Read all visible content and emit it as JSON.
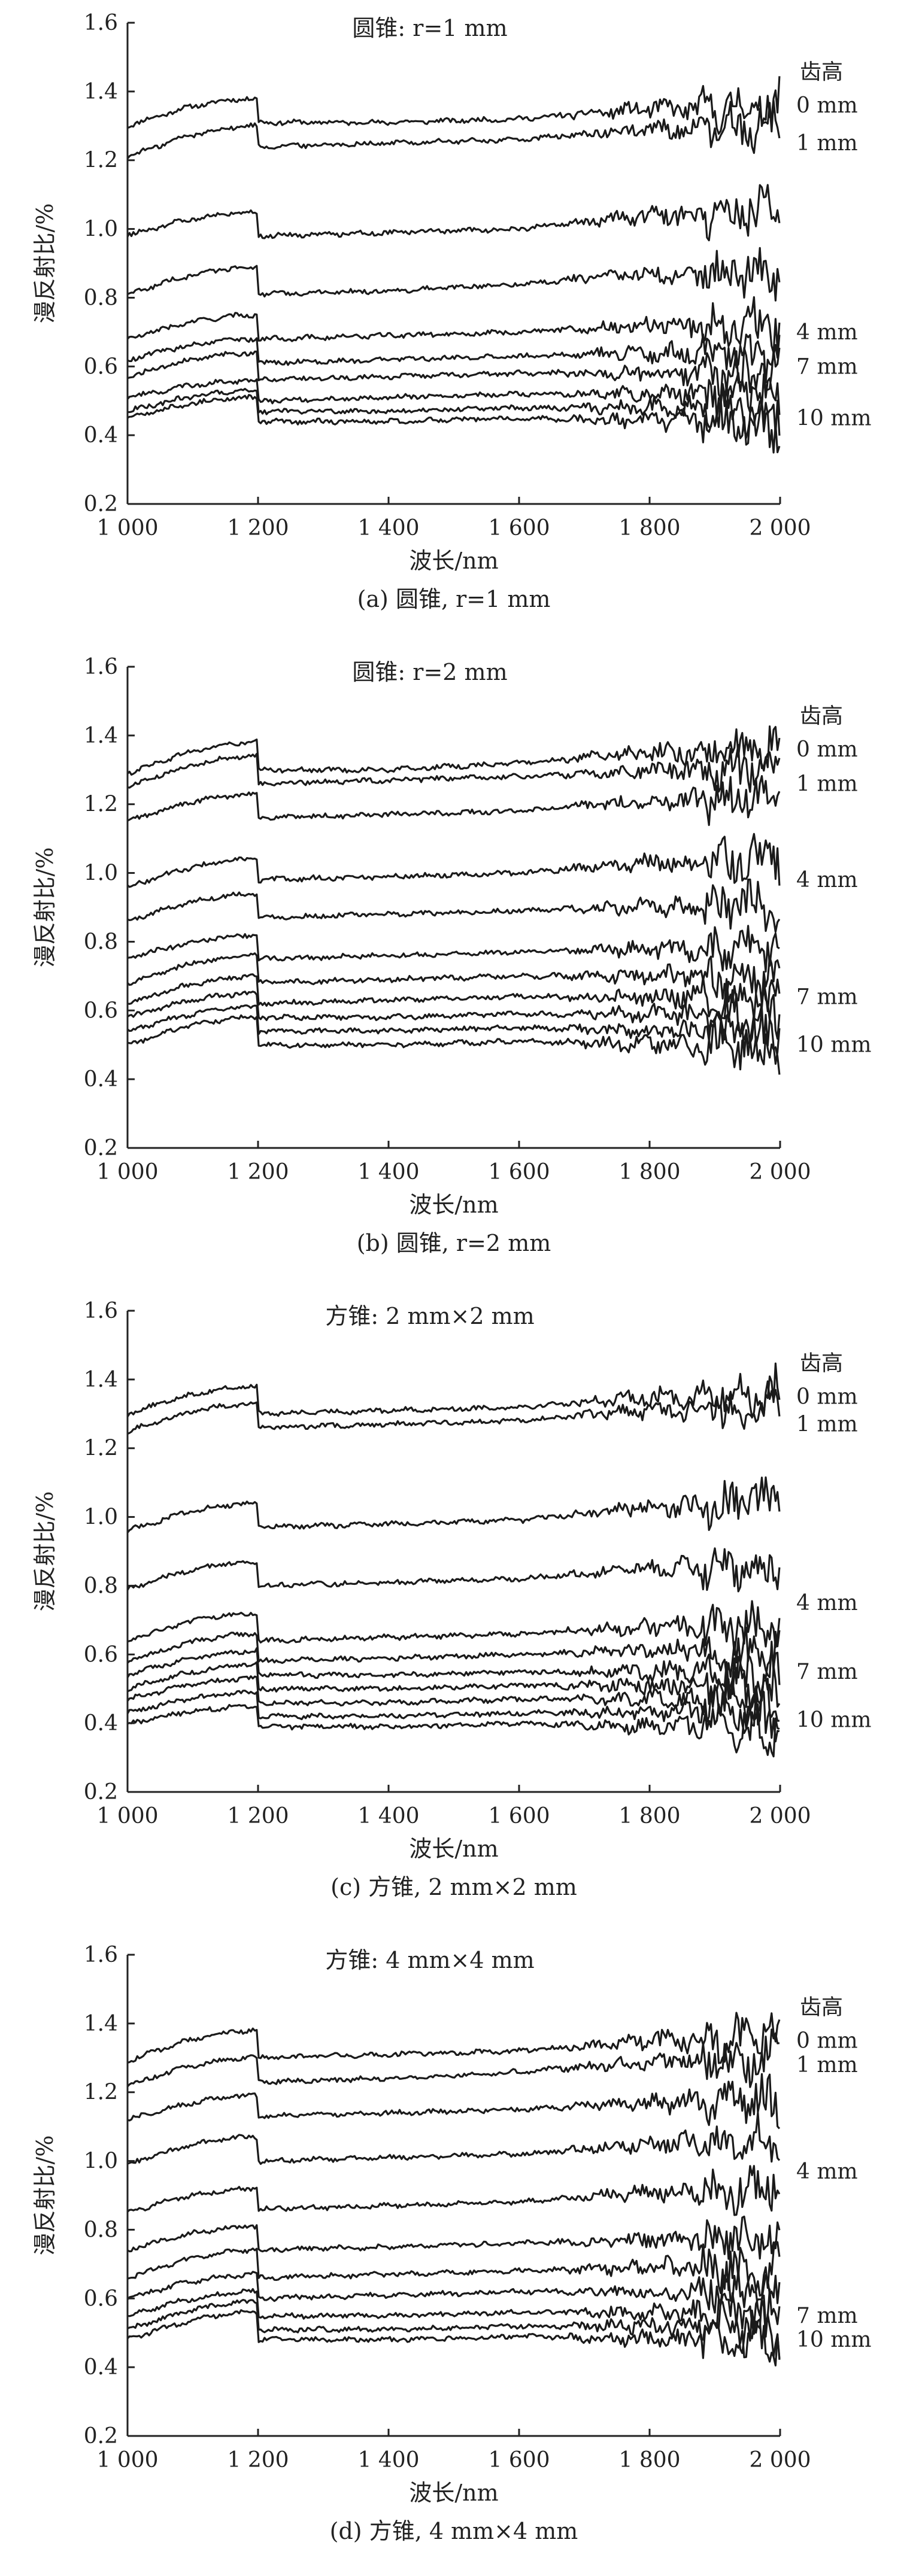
{
  "chart_data": [
    {
      "type": "line",
      "title": "圆锥: r=1 mm",
      "caption": "(a) 圆锥, r=1 mm",
      "xlabel": "波长/nm",
      "ylabel": "漫反射比/%",
      "xlim": [
        1000,
        2000
      ],
      "ylim": [
        0.2,
        1.6
      ],
      "xticks": [
        "1 000",
        "1 200",
        "1 400",
        "1 600",
        "1 800",
        "2 000"
      ],
      "yticks": [
        "0.2",
        "0.4",
        "0.6",
        "0.8",
        "1.0",
        "1.2",
        "1.4",
        "1.6"
      ],
      "legend_header": "齿高",
      "annotations": [
        {
          "text": "0 mm",
          "y": 1.36
        },
        {
          "text": "1 mm",
          "y": 1.25
        },
        {
          "text": "4 mm",
          "y": 0.7
        },
        {
          "text": "7 mm",
          "y": 0.6
        },
        {
          "text": "10 mm",
          "y": 0.45
        }
      ],
      "series": [
        {
          "values": [
            1.3,
            1.38,
            1.31,
            1.31,
            1.32,
            1.35,
            1.36
          ]
        },
        {
          "values": [
            1.21,
            1.3,
            1.24,
            1.25,
            1.26,
            1.29,
            1.31
          ]
        },
        {
          "values": [
            0.98,
            1.05,
            0.98,
            0.99,
            1.0,
            1.04,
            1.07
          ]
        },
        {
          "values": [
            0.81,
            0.89,
            0.81,
            0.82,
            0.84,
            0.87,
            0.88
          ]
        },
        {
          "values": [
            0.68,
            0.75,
            0.68,
            0.69,
            0.7,
            0.72,
            0.72
          ]
        },
        {
          "values": [
            0.62,
            0.68,
            0.61,
            0.62,
            0.63,
            0.64,
            0.64
          ]
        },
        {
          "values": [
            0.57,
            0.64,
            0.56,
            0.57,
            0.58,
            0.58,
            0.58
          ]
        },
        {
          "values": [
            0.51,
            0.56,
            0.5,
            0.51,
            0.52,
            0.52,
            0.51
          ]
        },
        {
          "values": [
            0.47,
            0.53,
            0.47,
            0.47,
            0.48,
            0.48,
            0.46
          ]
        },
        {
          "values": [
            0.45,
            0.51,
            0.44,
            0.44,
            0.45,
            0.44,
            0.42
          ]
        }
      ]
    },
    {
      "type": "line",
      "title": "圆锥: r=2 mm",
      "caption": "(b) 圆锥, r=2 mm",
      "xlabel": "波长/nm",
      "ylabel": "漫反射比/%",
      "xlim": [
        1000,
        2000
      ],
      "ylim": [
        0.2,
        1.6
      ],
      "xticks": [
        "1 000",
        "1 200",
        "1 400",
        "1 600",
        "1 800",
        "2 000"
      ],
      "yticks": [
        "0.2",
        "0.4",
        "0.6",
        "0.8",
        "1.0",
        "1.2",
        "1.4",
        "1.6"
      ],
      "legend_header": "齿高",
      "annotations": [
        {
          "text": "0 mm",
          "y": 1.36
        },
        {
          "text": "1 mm",
          "y": 1.26
        },
        {
          "text": "4 mm",
          "y": 0.98
        },
        {
          "text": "7 mm",
          "y": 0.64
        },
        {
          "text": "10 mm",
          "y": 0.5
        }
      ],
      "series": [
        {
          "values": [
            1.29,
            1.38,
            1.3,
            1.3,
            1.32,
            1.35,
            1.36
          ]
        },
        {
          "values": [
            1.25,
            1.34,
            1.26,
            1.27,
            1.28,
            1.3,
            1.31
          ]
        },
        {
          "values": [
            1.15,
            1.23,
            1.16,
            1.17,
            1.18,
            1.21,
            1.22
          ]
        },
        {
          "values": [
            0.96,
            1.04,
            0.98,
            0.99,
            1.0,
            1.03,
            1.05
          ]
        },
        {
          "values": [
            0.86,
            0.94,
            0.87,
            0.88,
            0.89,
            0.9,
            0.91
          ]
        },
        {
          "values": [
            0.75,
            0.82,
            0.75,
            0.76,
            0.77,
            0.78,
            0.78
          ]
        },
        {
          "values": [
            0.68,
            0.76,
            0.68,
            0.69,
            0.7,
            0.7,
            0.7
          ]
        },
        {
          "values": [
            0.62,
            0.7,
            0.62,
            0.63,
            0.64,
            0.64,
            0.63
          ]
        },
        {
          "values": [
            0.58,
            0.65,
            0.58,
            0.58,
            0.59,
            0.59,
            0.58
          ]
        },
        {
          "values": [
            0.54,
            0.61,
            0.54,
            0.54,
            0.55,
            0.54,
            0.53
          ]
        },
        {
          "values": [
            0.5,
            0.58,
            0.5,
            0.5,
            0.51,
            0.5,
            0.48
          ]
        }
      ]
    },
    {
      "type": "line",
      "title": "方锥: 2 mm×2 mm",
      "caption": "(c) 方锥, 2 mm×2 mm",
      "xlabel": "波长/nm",
      "ylabel": "漫反射比/%",
      "xlim": [
        1000,
        2000
      ],
      "ylim": [
        0.2,
        1.6
      ],
      "xticks": [
        "1 000",
        "1 200",
        "1 400",
        "1 600",
        "1 800",
        "2 000"
      ],
      "yticks": [
        "0.2",
        "0.4",
        "0.6",
        "0.8",
        "1.0",
        "1.2",
        "1.4",
        "1.6"
      ],
      "legend_header": "齿高",
      "annotations": [
        {
          "text": "0 mm",
          "y": 1.35
        },
        {
          "text": "1 mm",
          "y": 1.27
        },
        {
          "text": "4 mm",
          "y": 0.75
        },
        {
          "text": "7 mm",
          "y": 0.55
        },
        {
          "text": "10 mm",
          "y": 0.41
        }
      ],
      "series": [
        {
          "values": [
            1.3,
            1.38,
            1.3,
            1.31,
            1.32,
            1.35,
            1.36
          ]
        },
        {
          "values": [
            1.25,
            1.33,
            1.26,
            1.27,
            1.28,
            1.31,
            1.32
          ]
        },
        {
          "values": [
            0.96,
            1.04,
            0.97,
            0.98,
            0.99,
            1.03,
            1.05
          ]
        },
        {
          "values": [
            0.79,
            0.87,
            0.8,
            0.81,
            0.82,
            0.85,
            0.87
          ]
        },
        {
          "values": [
            0.64,
            0.72,
            0.64,
            0.65,
            0.66,
            0.68,
            0.68
          ]
        },
        {
          "values": [
            0.58,
            0.66,
            0.58,
            0.59,
            0.6,
            0.61,
            0.6
          ]
        },
        {
          "values": [
            0.54,
            0.61,
            0.54,
            0.54,
            0.55,
            0.55,
            0.54
          ]
        },
        {
          "values": [
            0.5,
            0.57,
            0.5,
            0.5,
            0.51,
            0.51,
            0.49
          ]
        },
        {
          "values": [
            0.47,
            0.53,
            0.46,
            0.46,
            0.47,
            0.47,
            0.45
          ]
        },
        {
          "values": [
            0.43,
            0.49,
            0.42,
            0.42,
            0.43,
            0.43,
            0.41
          ]
        },
        {
          "values": [
            0.4,
            0.45,
            0.39,
            0.39,
            0.4,
            0.39,
            0.38
          ]
        }
      ]
    },
    {
      "type": "line",
      "title": "方锥: 4 mm×4 mm",
      "caption": "(d) 方锥, 4 mm×4 mm",
      "xlabel": "波长/nm",
      "ylabel": "漫反射比/%",
      "xlim": [
        1000,
        2000
      ],
      "ylim": [
        0.2,
        1.6
      ],
      "xticks": [
        "1 000",
        "1 200",
        "1 400",
        "1 600",
        "1 800",
        "2 000"
      ],
      "yticks": [
        "0.2",
        "0.4",
        "0.6",
        "0.8",
        "1.0",
        "1.2",
        "1.4",
        "1.6"
      ],
      "legend_header": "齿高",
      "annotations": [
        {
          "text": "0 mm",
          "y": 1.35
        },
        {
          "text": "1 mm",
          "y": 1.28
        },
        {
          "text": "4 mm",
          "y": 0.97
        },
        {
          "text": "7 mm",
          "y": 0.55
        },
        {
          "text": "10 mm",
          "y": 0.48
        }
      ],
      "series": [
        {
          "values": [
            1.29,
            1.38,
            1.3,
            1.31,
            1.32,
            1.35,
            1.36
          ]
        },
        {
          "values": [
            1.22,
            1.3,
            1.23,
            1.24,
            1.26,
            1.29,
            1.3
          ]
        },
        {
          "values": [
            1.12,
            1.19,
            1.13,
            1.14,
            1.15,
            1.17,
            1.18
          ]
        },
        {
          "values": [
            0.99,
            1.07,
            1.0,
            1.01,
            1.02,
            1.05,
            1.07
          ]
        },
        {
          "values": [
            0.85,
            0.92,
            0.86,
            0.87,
            0.88,
            0.91,
            0.93
          ]
        },
        {
          "values": [
            0.74,
            0.81,
            0.74,
            0.75,
            0.76,
            0.77,
            0.78
          ]
        },
        {
          "values": [
            0.66,
            0.74,
            0.66,
            0.67,
            0.68,
            0.69,
            0.68
          ]
        },
        {
          "values": [
            0.6,
            0.67,
            0.6,
            0.61,
            0.62,
            0.62,
            0.61
          ]
        },
        {
          "values": [
            0.55,
            0.62,
            0.55,
            0.55,
            0.56,
            0.56,
            0.55
          ]
        },
        {
          "values": [
            0.51,
            0.59,
            0.51,
            0.51,
            0.52,
            0.52,
            0.51
          ]
        },
        {
          "values": [
            0.48,
            0.56,
            0.48,
            0.48,
            0.49,
            0.48,
            0.47
          ]
        }
      ]
    }
  ]
}
